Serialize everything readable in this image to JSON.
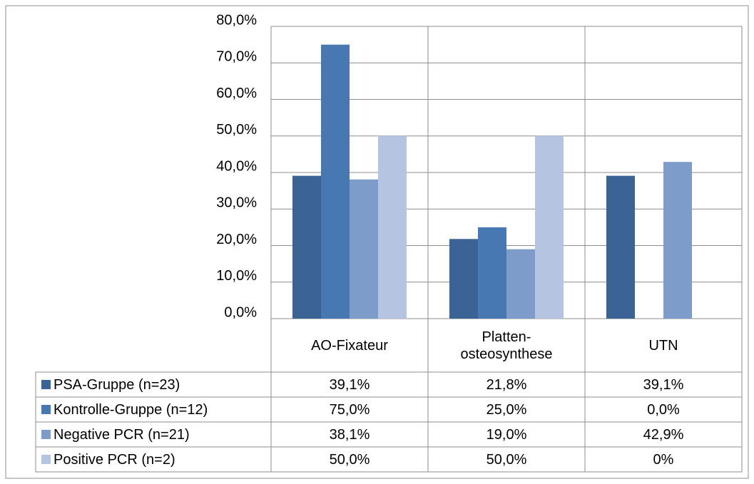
{
  "chart_data": {
    "type": "bar",
    "categories": [
      "AO-Fixateur",
      "Platten-\nosteosynthese",
      "UTN"
    ],
    "series": [
      {
        "name": "PSA-Gruppe (n=23)",
        "color": "#3b6396",
        "values": [
          39.1,
          21.8,
          39.1
        ],
        "value_labels": [
          "39,1%",
          "21,8%",
          "39,1%"
        ]
      },
      {
        "name": "Kontrolle-Gruppe (n=12)",
        "color": "#4878b2",
        "values": [
          75.0,
          25.0,
          0.0
        ],
        "value_labels": [
          "75,0%",
          "25,0%",
          "0,0%"
        ]
      },
      {
        "name": "Negative PCR (n=21)",
        "color": "#7e9cc9",
        "values": [
          38.1,
          19.0,
          42.9
        ],
        "value_labels": [
          "38,1%",
          "19,0%",
          "42,9%"
        ]
      },
      {
        "name": "Positive PCR (n=2)",
        "color": "#b5c4e0",
        "values": [
          50.0,
          50.0,
          0
        ],
        "value_labels": [
          "50,0%",
          "50,0%",
          "0%"
        ]
      }
    ],
    "ylim": [
      0,
      80
    ],
    "yticks": [
      {
        "value": 0,
        "label": "0,0%"
      },
      {
        "value": 10,
        "label": "10,0%"
      },
      {
        "value": 20,
        "label": "20,0%"
      },
      {
        "value": 30,
        "label": "30,0%"
      },
      {
        "value": 40,
        "label": "40,0%"
      },
      {
        "value": 50,
        "label": "50,0%"
      },
      {
        "value": 60,
        "label": "60,0%"
      },
      {
        "value": 70,
        "label": "70,0%"
      },
      {
        "value": 80,
        "label": "80,0%"
      }
    ],
    "grid": true,
    "legend": "table"
  }
}
